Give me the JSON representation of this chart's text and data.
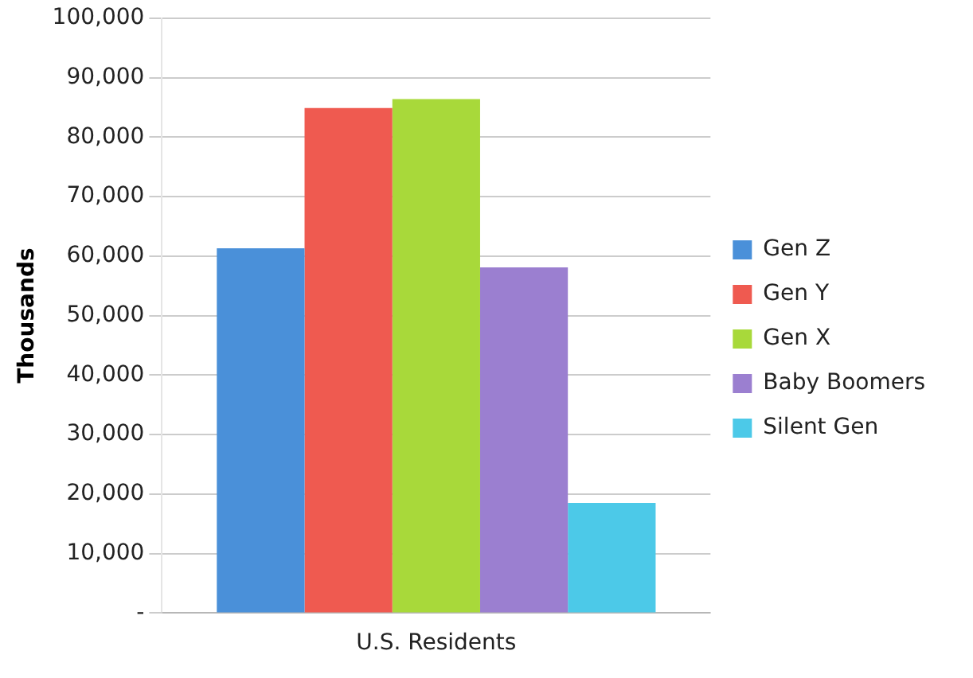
{
  "chart_data": {
    "type": "bar",
    "ylabel": "Thousands",
    "categories": [
      "U.S. Residents"
    ],
    "series": [
      {
        "name": "Gen Z",
        "color": "#4a90d9",
        "values": [
          61300
        ]
      },
      {
        "name": "Gen Y",
        "color": "#ef5a50",
        "values": [
          84900
        ]
      },
      {
        "name": "Gen X",
        "color": "#a8d93a",
        "values": [
          86400
        ]
      },
      {
        "name": "Baby Boomers",
        "color": "#9b7fd0",
        "values": [
          58100
        ]
      },
      {
        "name": "Silent Gen",
        "color": "#4cc9e8",
        "values": [
          18500
        ]
      }
    ],
    "ylim": [
      0,
      100000
    ],
    "yticks": [
      {
        "value": 0,
        "label": "-"
      },
      {
        "value": 10000,
        "label": "10,000"
      },
      {
        "value": 20000,
        "label": "20,000"
      },
      {
        "value": 30000,
        "label": "30,000"
      },
      {
        "value": 40000,
        "label": "40,000"
      },
      {
        "value": 50000,
        "label": "50,000"
      },
      {
        "value": 60000,
        "label": "60,000"
      },
      {
        "value": 70000,
        "label": "70,000"
      },
      {
        "value": 80000,
        "label": "80,000"
      },
      {
        "value": 90000,
        "label": "90,000"
      },
      {
        "value": 100000,
        "label": "100,000"
      }
    ],
    "grid": "y",
    "legend": "right"
  }
}
